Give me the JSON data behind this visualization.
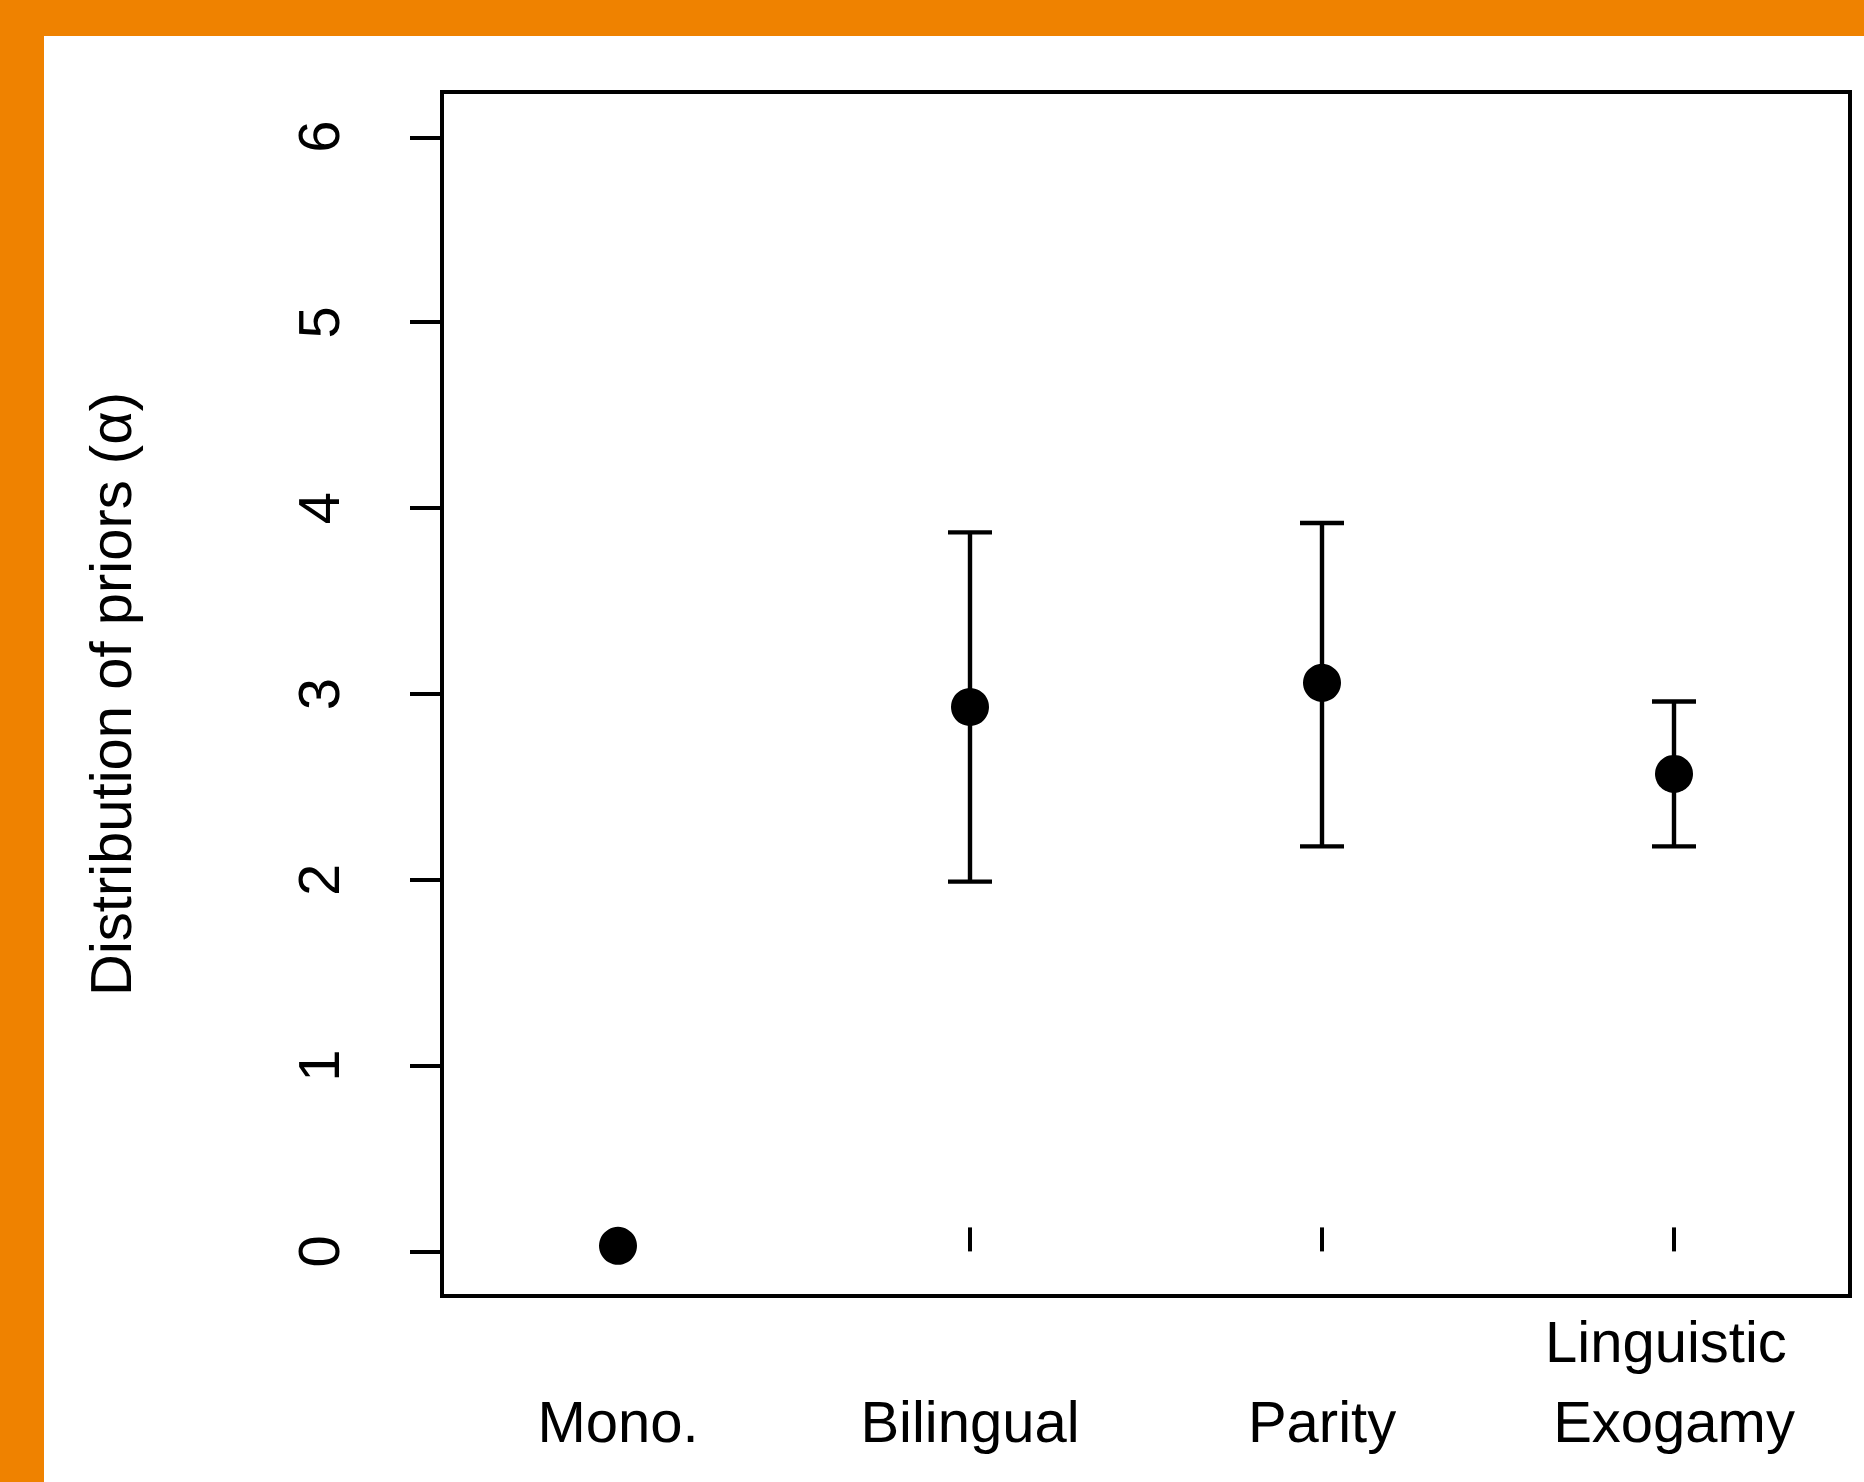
{
  "chart_data": {
    "type": "scatter",
    "ylabel": "Distribution of priors (α)",
    "categories": [
      "Mono.",
      "Bilingual",
      "Parity",
      "Linguistic Exogamy"
    ],
    "values": [
      0.03,
      2.93,
      3.06,
      2.57
    ],
    "errors": [
      null,
      [
        1.99,
        3.87
      ],
      [
        2.18,
        3.92
      ],
      [
        2.18,
        2.96
      ]
    ],
    "color": "#000000",
    "marker": "circle",
    "grid": false,
    "ylim": [
      -0.24,
      6.24
    ],
    "yticks": [
      0,
      1,
      2,
      3,
      4,
      5,
      6
    ]
  }
}
